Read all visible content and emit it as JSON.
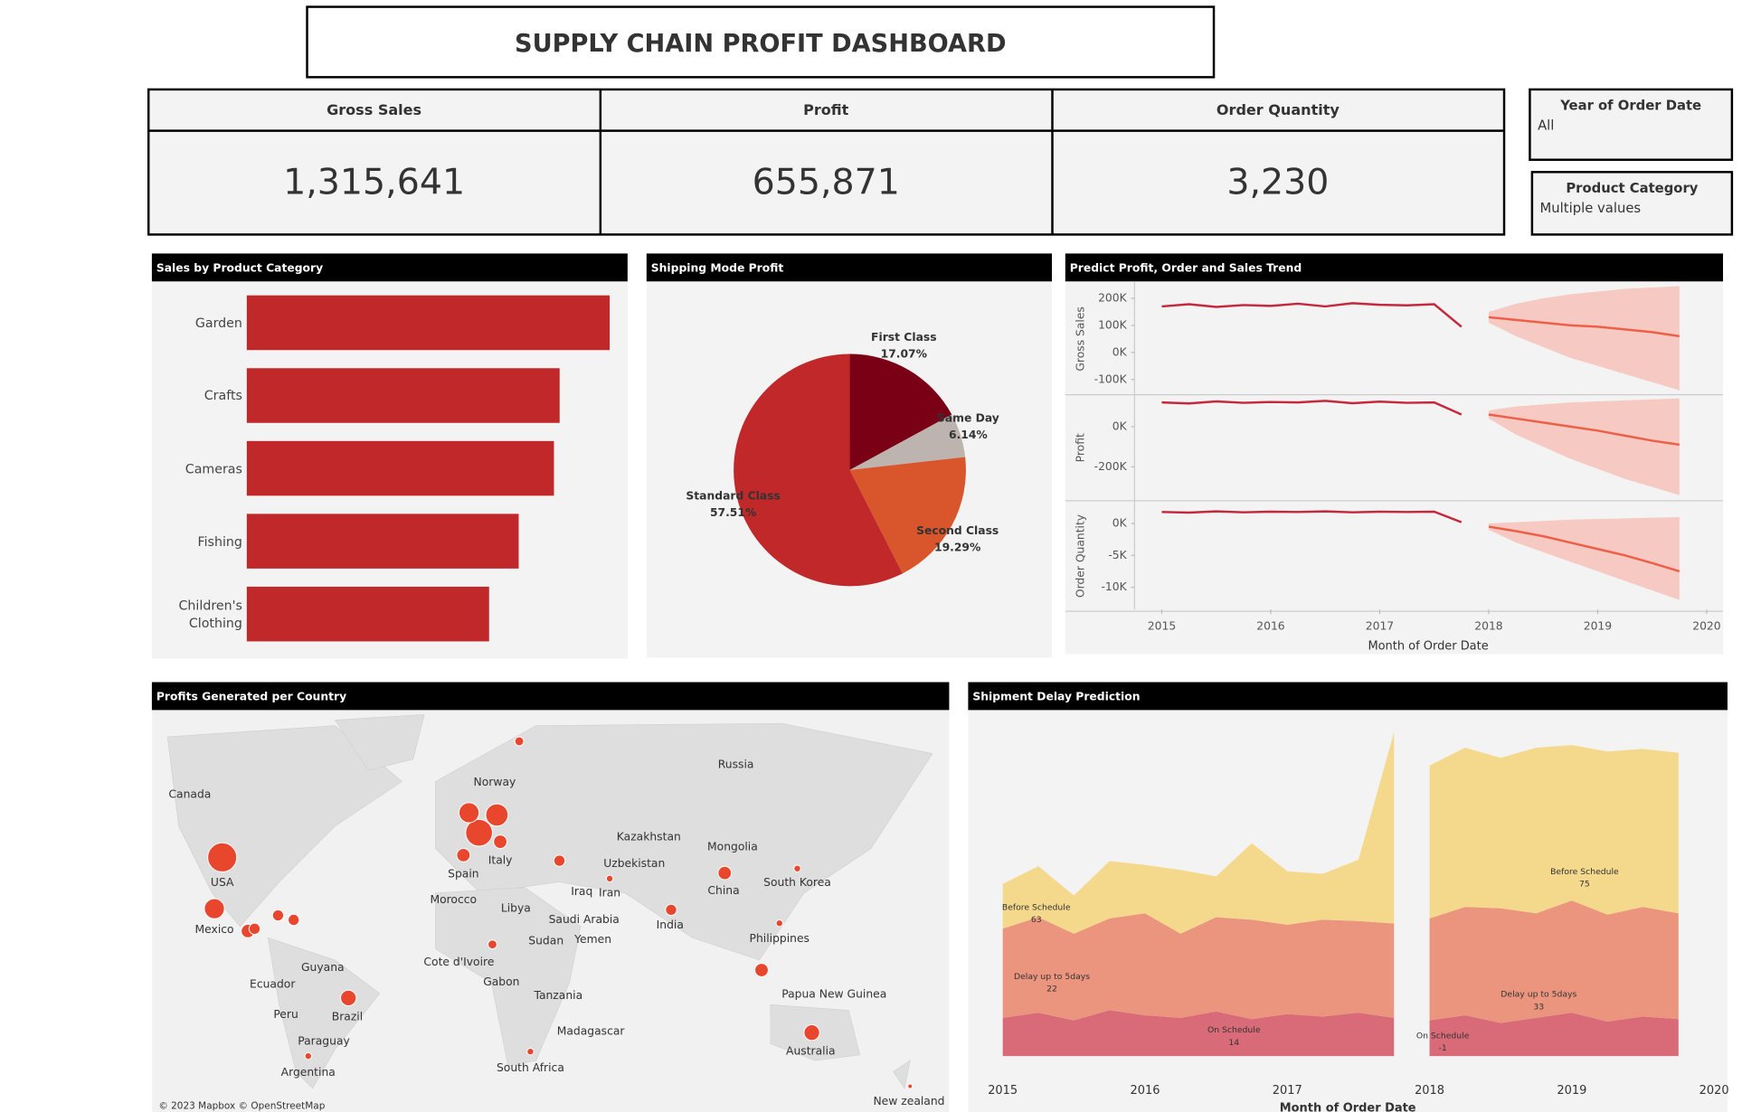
{
  "header": {
    "title": "SUPPLY CHAIN PROFIT DASHBOARD"
  },
  "kpis": [
    {
      "label": "Gross Sales",
      "value": "1,315,641"
    },
    {
      "label": "Profit",
      "value": "655,871"
    },
    {
      "label": "Order Quantity",
      "value": "3,230"
    }
  ],
  "filters": [
    {
      "label": "Year of Order Date",
      "value": "All"
    },
    {
      "label": "Product Category",
      "value": "Multiple values"
    }
  ],
  "chart_data": [
    {
      "type": "hbar",
      "title": "Sales by Product Category",
      "categories": [
        "Garden",
        "Crafts",
        "Cameras",
        "Fishing",
        "Children's Clothing"
      ],
      "values": [
        319000,
        275000,
        270000,
        239000,
        213000
      ],
      "color": "#c0282a"
    },
    {
      "type": "pie",
      "title": "Shipping Mode Profit",
      "categories": [
        "First Class",
        "Same Day",
        "Second Class",
        "Standard Class"
      ],
      "values": [
        17.07,
        6.14,
        19.29,
        57.51
      ],
      "value_labels": [
        "17.07%",
        "6.14%",
        "19.29%",
        "57.51%"
      ],
      "colors": [
        "#7a0016",
        "#bdb4b0",
        "#d9552b",
        "#c0282a"
      ]
    },
    {
      "type": "forecast",
      "title": "Predict Profit, Order and Sales Trend",
      "x_label": "Month of Order Date",
      "x": [
        2015,
        2015.25,
        2015.5,
        2015.75,
        2016,
        2016.25,
        2016.5,
        2016.75,
        2017,
        2017.25,
        2017.5,
        2017.75,
        2018,
        2018.25,
        2018.5,
        2018.75,
        2019,
        2019.25,
        2019.5,
        2019.75
      ],
      "xlim": [
        2014.75,
        2020.15
      ],
      "xticks": [
        2015,
        2016,
        2017,
        2018,
        2019,
        2020
      ],
      "colors": {
        "actual": "#c5283d",
        "forecast": "#ee5f4a",
        "band": "#f6c2b8"
      },
      "panels": [
        {
          "y_label": "Gross Sales",
          "ylim": [
            -150000,
            250000
          ],
          "yticks": [
            {
              "value": -100000,
              "label": "-100K"
            },
            {
              "value": 0,
              "label": "0K"
            },
            {
              "value": 100000,
              "label": "100K"
            },
            {
              "value": 200000,
              "label": "200K"
            }
          ],
          "actual": [
            170000,
            178000,
            168000,
            175000,
            172000,
            180000,
            170000,
            182000,
            176000,
            174000,
            178000,
            95000,
            null,
            null,
            null,
            null,
            null,
            null,
            null,
            null
          ],
          "forecast": [
            null,
            null,
            null,
            null,
            null,
            null,
            null,
            null,
            null,
            null,
            null,
            null,
            130000,
            120000,
            110000,
            100000,
            95000,
            85000,
            75000,
            60000
          ],
          "upper": [
            null,
            null,
            null,
            null,
            null,
            null,
            null,
            null,
            null,
            null,
            null,
            null,
            150000,
            180000,
            200000,
            215000,
            225000,
            235000,
            240000,
            245000
          ],
          "lower": [
            null,
            null,
            null,
            null,
            null,
            null,
            null,
            null,
            null,
            null,
            null,
            null,
            110000,
            60000,
            20000,
            -20000,
            -50000,
            -80000,
            -110000,
            -140000
          ]
        },
        {
          "y_label": "Profit",
          "ylim": [
            -360000,
            150000
          ],
          "yticks": [
            {
              "value": -200000,
              "label": "-200K"
            },
            {
              "value": 0,
              "label": "0K"
            }
          ],
          "actual": [
            120000,
            115000,
            125000,
            118000,
            122000,
            120000,
            128000,
            116000,
            124000,
            118000,
            120000,
            60000,
            null,
            null,
            null,
            null,
            null,
            null,
            null,
            null
          ],
          "forecast": [
            null,
            null,
            null,
            null,
            null,
            null,
            null,
            null,
            null,
            null,
            null,
            null,
            60000,
            40000,
            20000,
            0,
            -20000,
            -45000,
            -70000,
            -90000
          ],
          "upper": [
            null,
            null,
            null,
            null,
            null,
            null,
            null,
            null,
            null,
            null,
            null,
            null,
            80000,
            100000,
            110000,
            120000,
            125000,
            130000,
            135000,
            140000
          ],
          "lower": [
            null,
            null,
            null,
            null,
            null,
            null,
            null,
            null,
            null,
            null,
            null,
            null,
            40000,
            -40000,
            -100000,
            -160000,
            -210000,
            -260000,
            -300000,
            -340000
          ]
        },
        {
          "y_label": "Order Quantity",
          "ylim": [
            -13500,
            3300
          ],
          "yticks": [
            {
              "value": -10000,
              "label": "-10K"
            },
            {
              "value": -5000,
              "label": "-5K"
            },
            {
              "value": 0,
              "label": "0K"
            }
          ],
          "actual": [
            1800,
            1700,
            1900,
            1750,
            1850,
            1800,
            1900,
            1750,
            1850,
            1800,
            1850,
            200,
            null,
            null,
            null,
            null,
            null,
            null,
            null,
            null
          ],
          "forecast": [
            null,
            null,
            null,
            null,
            null,
            null,
            null,
            null,
            null,
            null,
            null,
            null,
            -500,
            -1200,
            -2000,
            -3000,
            -4000,
            -5000,
            -6200,
            -7500
          ],
          "upper": [
            null,
            null,
            null,
            null,
            null,
            null,
            null,
            null,
            null,
            null,
            null,
            null,
            0,
            200,
            400,
            600,
            700,
            800,
            900,
            1000
          ],
          "lower": [
            null,
            null,
            null,
            null,
            null,
            null,
            null,
            null,
            null,
            null,
            null,
            null,
            -1000,
            -3000,
            -4500,
            -6000,
            -7500,
            -9000,
            -10500,
            -12000
          ]
        }
      ]
    },
    {
      "type": "map",
      "title": "Profits Generated per Country",
      "credit": "© 2023 Mapbox © OpenStreetMap",
      "labels": [
        "Canada",
        "USA",
        "Mexico",
        "Ecuador",
        "Peru",
        "Guyana",
        "Brazil",
        "Paraguay",
        "Argentina",
        "Norway",
        "Spain",
        "Italy",
        "Morocco",
        "Libya",
        "Cote d'Ivoire",
        "Gabon",
        "Sudan",
        "Tanzania",
        "Madagascar",
        "South Africa",
        "Saudi Arabia",
        "Yemen",
        "Iraq",
        "Iran",
        "Kazakhstan",
        "Uzbekistan",
        "India",
        "Mongolia",
        "China",
        "Russia",
        "South Korea",
        "Philippines",
        "Papua New Guinea",
        "Australia",
        "New zealand"
      ]
    },
    {
      "type": "stacked_area",
      "title": "Shipment Delay Prediction",
      "x_label": "Month of Order Date",
      "x": [
        2015,
        2015.25,
        2015.5,
        2015.75,
        2016,
        2016.25,
        2016.5,
        2016.75,
        2017,
        2017.25,
        2017.5,
        2017.75,
        2017.875,
        2018,
        2018.25,
        2018.5,
        2018.75,
        2019,
        2019.25,
        2019.5,
        2019.75
      ],
      "xlim": [
        2015,
        2020
      ],
      "xticks": [
        2015,
        2016,
        2017,
        2018,
        2019,
        2020
      ],
      "series": [
        {
          "name": "On Schedule",
          "color": "#d96a78",
          "values": [
            30,
            34,
            28,
            36,
            32,
            30,
            35,
            29,
            33,
            31,
            34,
            30,
            null,
            28,
            32,
            26,
            30,
            34,
            27,
            31,
            29
          ]
        },
        {
          "name": "Delay up to 5days",
          "color": "#eb957f",
          "values": [
            70,
            75,
            68,
            72,
            80,
            66,
            74,
            78,
            70,
            76,
            72,
            74,
            null,
            80,
            85,
            90,
            82,
            88,
            84,
            86,
            83
          ]
        },
        {
          "name": "Before Schedule",
          "color": "#f4d98c",
          "values": [
            35,
            40,
            30,
            45,
            38,
            50,
            32,
            60,
            42,
            36,
            48,
            150,
            null,
            120,
            125,
            118,
            130,
            122,
            128,
            124,
            126
          ]
        }
      ],
      "annotations": [
        {
          "label": "Before Schedule",
          "value": 63
        },
        {
          "label": "Delay up to 5days",
          "value": 22
        },
        {
          "label": "On Schedule",
          "value": 14
        },
        {
          "label": "Before Schedule",
          "value": 75
        },
        {
          "label": "Delay up to 5days",
          "value": 33
        },
        {
          "label": "On Schedule",
          "value": -1
        }
      ]
    }
  ]
}
